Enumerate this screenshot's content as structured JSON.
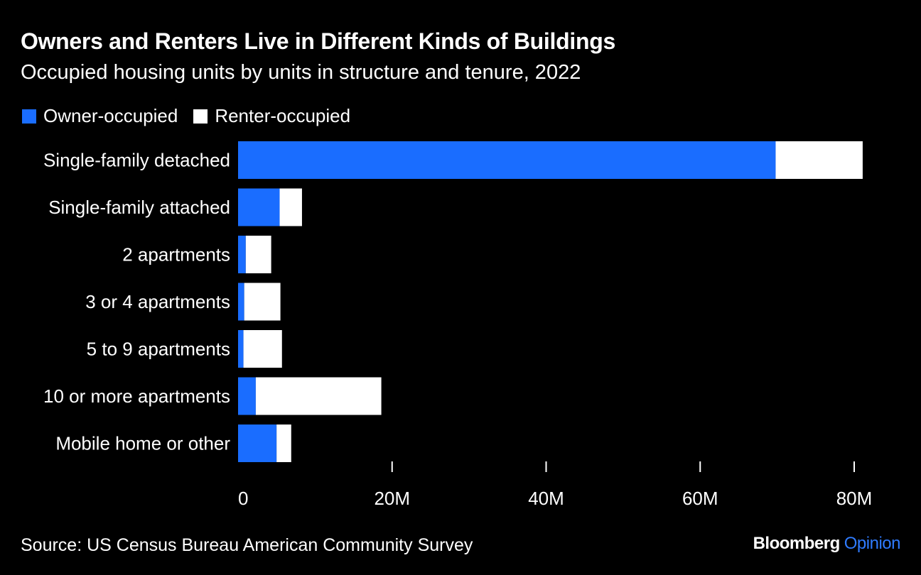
{
  "header": {
    "title": "Owners and Renters Live in Different Kinds of Buildings",
    "subtitle": "Occupied housing units by units in structure and tenure, 2022"
  },
  "legend": {
    "owner_label": "Owner-occupied",
    "renter_label": "Renter-occupied"
  },
  "colors": {
    "owner": "#1a6dff",
    "renter": "#ffffff",
    "background": "#000000",
    "text": "#ffffff"
  },
  "footer": {
    "source": "Source: US Census Bureau American Community Survey",
    "brand_name": "Bloomberg",
    "brand_suffix": "Opinion"
  },
  "chart_data": {
    "type": "bar",
    "orientation": "horizontal",
    "stacked": true,
    "title": "Owners and Renters Live in Different Kinds of Buildings",
    "subtitle": "Occupied housing units by units in structure and tenure, 2022",
    "categories": [
      "Single-family detached",
      "Single-family attached",
      "2 apartments",
      "3 or 4 apartments",
      "5 to 9 apartments",
      "10 or more apartments",
      "Mobile home or other"
    ],
    "series": [
      {
        "name": "Owner-occupied",
        "values": [
          69.8,
          5.4,
          1.0,
          0.8,
          0.7,
          2.3,
          5.0
        ]
      },
      {
        "name": "Renter-occupied",
        "values": [
          11.3,
          2.9,
          3.3,
          4.7,
          5.0,
          16.3,
          1.9
        ]
      }
    ],
    "xlim": [
      0,
      80
    ],
    "xticks": [
      0,
      20,
      40,
      60,
      80
    ],
    "xtick_labels": [
      "0",
      "20M",
      "40M",
      "60M",
      "80M"
    ],
    "legend_position": "top-left",
    "grid": false
  }
}
